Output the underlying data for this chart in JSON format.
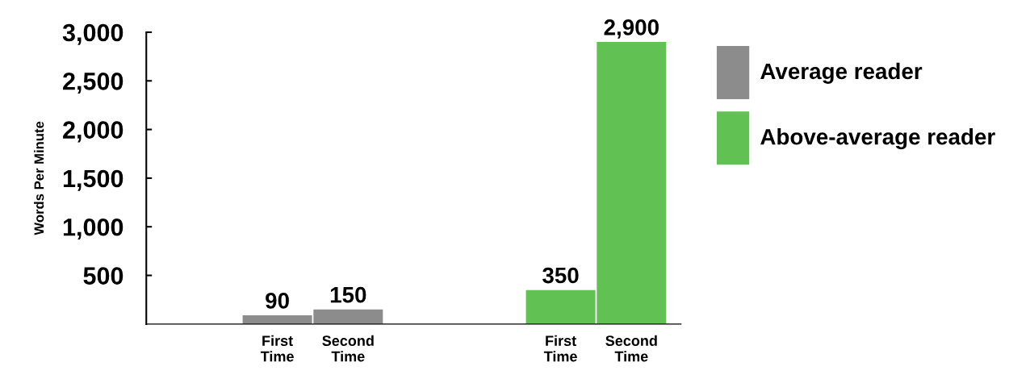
{
  "chart_data": {
    "type": "bar",
    "ylabel": "Words Per Minute",
    "categories": [
      "First\nTime",
      "Second\nTime",
      null,
      null,
      "First\nTime",
      "Second\nTime"
    ],
    "series": [
      {
        "name": "Average reader",
        "color": "#8c8c8c",
        "values": [
          90,
          150,
          null,
          null,
          null,
          null
        ],
        "value_labels": [
          "90",
          "150",
          null,
          null,
          null,
          null
        ]
      },
      {
        "name": "Above-average reader",
        "color": "#62c153",
        "values": [
          null,
          null,
          null,
          null,
          350,
          2900
        ],
        "value_labels": [
          null,
          null,
          null,
          null,
          "350",
          "2,900"
        ]
      }
    ],
    "ylim": [
      0,
      3000
    ],
    "yticks": [
      {
        "value": 500,
        "label": "500"
      },
      {
        "value": 1000,
        "label": "1,000"
      },
      {
        "value": 1500,
        "label": "1,500"
      },
      {
        "value": 2000,
        "label": "2,000"
      },
      {
        "value": 2500,
        "label": "2,500"
      },
      {
        "value": 3000,
        "label": "3,000"
      }
    ],
    "grid": false,
    "legend": "right"
  }
}
